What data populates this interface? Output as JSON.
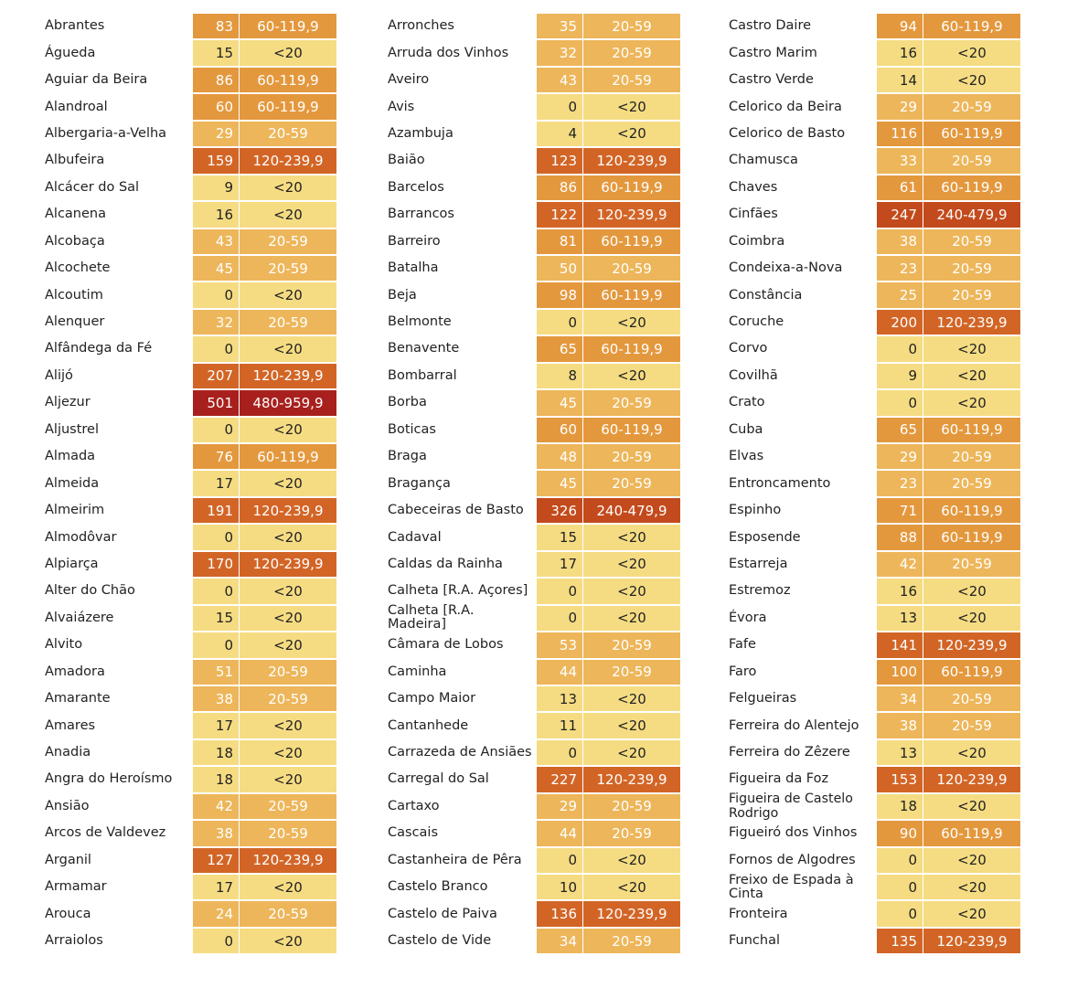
{
  "colors": {
    "<20": "#f5dc82",
    "20-59": "#edb65a",
    "60-119,9": "#e4983d",
    "120-239,9": "#d26526",
    "240-479,9": "#c34a1c",
    "480-959,9": "#a8201d"
  },
  "columns": [
    [
      {
        "name": "Abrantes",
        "value": "83",
        "range": "60-119,9"
      },
      {
        "name": "Águeda",
        "value": "15",
        "range": "<20"
      },
      {
        "name": "Aguiar da Beira",
        "value": "86",
        "range": "60-119,9"
      },
      {
        "name": "Alandroal",
        "value": "60",
        "range": "60-119,9"
      },
      {
        "name": "Albergaria-a-Velha",
        "value": "29",
        "range": "20-59"
      },
      {
        "name": "Albufeira",
        "value": "159",
        "range": "120-239,9"
      },
      {
        "name": "Alcácer do Sal",
        "value": "9",
        "range": "<20"
      },
      {
        "name": "Alcanena",
        "value": "16",
        "range": "<20"
      },
      {
        "name": "Alcobaça",
        "value": "43",
        "range": "20-59"
      },
      {
        "name": "Alcochete",
        "value": "45",
        "range": "20-59"
      },
      {
        "name": "Alcoutim",
        "value": "0",
        "range": "<20"
      },
      {
        "name": "Alenquer",
        "value": "32",
        "range": "20-59"
      },
      {
        "name": "Alfândega da Fé",
        "value": "0",
        "range": "<20"
      },
      {
        "name": "Alijó",
        "value": "207",
        "range": "120-239,9"
      },
      {
        "name": "Aljezur",
        "value": "501",
        "range": "480-959,9"
      },
      {
        "name": "Aljustrel",
        "value": "0",
        "range": "<20"
      },
      {
        "name": "Almada",
        "value": "76",
        "range": "60-119,9"
      },
      {
        "name": "Almeida",
        "value": "17",
        "range": "<20"
      },
      {
        "name": "Almeirim",
        "value": "191",
        "range": "120-239,9"
      },
      {
        "name": "Almodôvar",
        "value": "0",
        "range": "<20"
      },
      {
        "name": "Alpiarça",
        "value": "170",
        "range": "120-239,9"
      },
      {
        "name": "Alter do Chão",
        "value": "0",
        "range": "<20"
      },
      {
        "name": "Alvaiázere",
        "value": "15",
        "range": "<20"
      },
      {
        "name": "Alvito",
        "value": "0",
        "range": "<20"
      },
      {
        "name": "Amadora",
        "value": "51",
        "range": "20-59"
      },
      {
        "name": "Amarante",
        "value": "38",
        "range": "20-59"
      },
      {
        "name": "Amares",
        "value": "17",
        "range": "<20"
      },
      {
        "name": "Anadia",
        "value": "18",
        "range": "<20"
      },
      {
        "name": "Angra do Heroísmo",
        "value": "18",
        "range": "<20"
      },
      {
        "name": "Ansião",
        "value": "42",
        "range": "20-59"
      },
      {
        "name": "Arcos de Valdevez",
        "value": "38",
        "range": "20-59"
      },
      {
        "name": "Arganil",
        "value": "127",
        "range": "120-239,9"
      },
      {
        "name": "Armamar",
        "value": "17",
        "range": "<20"
      },
      {
        "name": "Arouca",
        "value": "24",
        "range": "20-59"
      },
      {
        "name": "Arraiolos",
        "value": "0",
        "range": "<20"
      }
    ],
    [
      {
        "name": "Arronches",
        "value": "35",
        "range": "20-59"
      },
      {
        "name": "Arruda dos Vinhos",
        "value": "32",
        "range": "20-59"
      },
      {
        "name": "Aveiro",
        "value": "43",
        "range": "20-59"
      },
      {
        "name": "Avis",
        "value": "0",
        "range": "<20"
      },
      {
        "name": "Azambuja",
        "value": "4",
        "range": "<20"
      },
      {
        "name": "Baião",
        "value": "123",
        "range": "120-239,9"
      },
      {
        "name": "Barcelos",
        "value": "86",
        "range": "60-119,9"
      },
      {
        "name": "Barrancos",
        "value": "122",
        "range": "120-239,9"
      },
      {
        "name": "Barreiro",
        "value": "81",
        "range": "60-119,9"
      },
      {
        "name": "Batalha",
        "value": "50",
        "range": "20-59"
      },
      {
        "name": "Beja",
        "value": "98",
        "range": "60-119,9"
      },
      {
        "name": "Belmonte",
        "value": "0",
        "range": "<20"
      },
      {
        "name": "Benavente",
        "value": "65",
        "range": "60-119,9"
      },
      {
        "name": "Bombarral",
        "value": "8",
        "range": "<20"
      },
      {
        "name": "Borba",
        "value": "45",
        "range": "20-59"
      },
      {
        "name": "Boticas",
        "value": "60",
        "range": "60-119,9"
      },
      {
        "name": "Braga",
        "value": "48",
        "range": "20-59"
      },
      {
        "name": "Bragança",
        "value": "45",
        "range": "20-59"
      },
      {
        "name": "Cabeceiras de Basto",
        "value": "326",
        "range": "240-479,9"
      },
      {
        "name": "Cadaval",
        "value": "15",
        "range": "<20"
      },
      {
        "name": "Caldas da Rainha",
        "value": "17",
        "range": "<20"
      },
      {
        "name": "Calheta [R.A. Açores]",
        "value": "0",
        "range": "<20"
      },
      {
        "name": "Calheta [R.A. Madeira]",
        "value": "0",
        "range": "<20"
      },
      {
        "name": "Câmara de Lobos",
        "value": "53",
        "range": "20-59"
      },
      {
        "name": "Caminha",
        "value": "44",
        "range": "20-59"
      },
      {
        "name": "Campo Maior",
        "value": "13",
        "range": "<20"
      },
      {
        "name": "Cantanhede",
        "value": "11",
        "range": "<20"
      },
      {
        "name": "Carrazeda de Ansiães",
        "value": "0",
        "range": "<20"
      },
      {
        "name": "Carregal do Sal",
        "value": "227",
        "range": "120-239,9"
      },
      {
        "name": "Cartaxo",
        "value": "29",
        "range": "20-59"
      },
      {
        "name": "Cascais",
        "value": "44",
        "range": "20-59"
      },
      {
        "name": "Castanheira de Pêra",
        "value": "0",
        "range": "<20"
      },
      {
        "name": "Castelo Branco",
        "value": "10",
        "range": "<20"
      },
      {
        "name": "Castelo de Paiva",
        "value": "136",
        "range": "120-239,9"
      },
      {
        "name": "Castelo de Vide",
        "value": "34",
        "range": "20-59"
      }
    ],
    [
      {
        "name": "Castro Daire",
        "value": "94",
        "range": "60-119,9"
      },
      {
        "name": "Castro Marim",
        "value": "16",
        "range": "<20"
      },
      {
        "name": "Castro Verde",
        "value": "14",
        "range": "<20"
      },
      {
        "name": "Celorico da Beira",
        "value": "29",
        "range": "20-59"
      },
      {
        "name": "Celorico de Basto",
        "value": "116",
        "range": "60-119,9"
      },
      {
        "name": "Chamusca",
        "value": "33",
        "range": "20-59"
      },
      {
        "name": "Chaves",
        "value": "61",
        "range": "60-119,9"
      },
      {
        "name": "Cinfães",
        "value": "247",
        "range": "240-479,9"
      },
      {
        "name": "Coimbra",
        "value": "38",
        "range": "20-59"
      },
      {
        "name": "Condeixa-a-Nova",
        "value": "23",
        "range": "20-59"
      },
      {
        "name": "Constância",
        "value": "25",
        "range": "20-59"
      },
      {
        "name": "Coruche",
        "value": "200",
        "range": "120-239,9"
      },
      {
        "name": "Corvo",
        "value": "0",
        "range": "<20"
      },
      {
        "name": "Covilhã",
        "value": "9",
        "range": "<20"
      },
      {
        "name": "Crato",
        "value": "0",
        "range": "<20"
      },
      {
        "name": "Cuba",
        "value": "65",
        "range": "60-119,9"
      },
      {
        "name": "Elvas",
        "value": "29",
        "range": "20-59"
      },
      {
        "name": "Entroncamento",
        "value": "23",
        "range": "20-59"
      },
      {
        "name": "Espinho",
        "value": "71",
        "range": "60-119,9"
      },
      {
        "name": "Esposende",
        "value": "88",
        "range": "60-119,9"
      },
      {
        "name": "Estarreja",
        "value": "42",
        "range": "20-59"
      },
      {
        "name": "Estremoz",
        "value": "16",
        "range": "<20"
      },
      {
        "name": "Évora",
        "value": "13",
        "range": "<20"
      },
      {
        "name": "Fafe",
        "value": "141",
        "range": "120-239,9"
      },
      {
        "name": "Faro",
        "value": "100",
        "range": "60-119,9"
      },
      {
        "name": "Felgueiras",
        "value": "34",
        "range": "20-59"
      },
      {
        "name": "Ferreira do Alentejo",
        "value": "38",
        "range": "20-59"
      },
      {
        "name": "Ferreira do Zêzere",
        "value": "13",
        "range": "<20"
      },
      {
        "name": "Figueira da Foz",
        "value": "153",
        "range": "120-239,9"
      },
      {
        "name": "Figueira de Castelo Rodrigo",
        "value": "18",
        "range": "<20"
      },
      {
        "name": "Figueiró dos Vinhos",
        "value": "90",
        "range": "60-119,9"
      },
      {
        "name": "Fornos de Algodres",
        "value": "0",
        "range": "<20"
      },
      {
        "name": "Freixo de Espada à Cinta",
        "value": "0",
        "range": "<20"
      },
      {
        "name": "Fronteira",
        "value": "0",
        "range": "<20"
      },
      {
        "name": "Funchal",
        "value": "135",
        "range": "120-239,9"
      }
    ]
  ]
}
